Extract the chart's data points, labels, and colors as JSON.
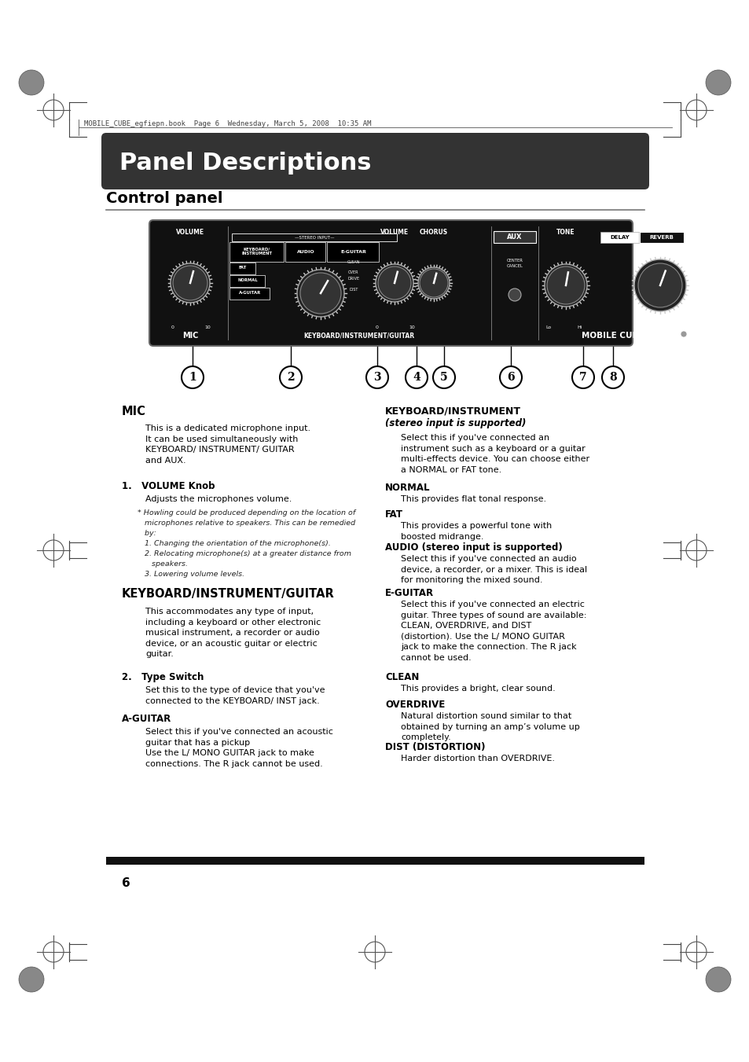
{
  "bg_color": "#ffffff",
  "page_title": "Panel Descriptions",
  "section_title": "Control panel",
  "header_text": "MOBILE_CUBE_egfiepn.book  Page 6  Wednesday, March 5, 2008  10:35 AM",
  "page_number": "6",
  "mic_heading": "MIC",
  "mic_body": "This is a dedicated microphone input.\nIt can be used simultaneously with\nKEYBOARD/ INSTRUMENT/ GUITAR\nand AUX.",
  "mic_sub1_heading": "1.   VOLUME Knob",
  "mic_sub1_body": "Adjusts the microphones volume.",
  "ki_heading": "KEYBOARD/INSTRUMENT/GUITAR",
  "ki_body": "This accommodates any type of input,\nincluding a keyboard or other electronic\nmusical instrument, a recorder or audio\ndevice, or an acoustic guitar or electric\nguitar.",
  "ki_sub1_heading": "2.   Type Switch",
  "ki_sub1_body": "Set this to the type of device that you've\nconnected to the KEYBOARD/ INST jack.",
  "a_guitar_heading": "A-GUITAR",
  "a_guitar_body": "Select this if you've connected an acoustic\nguitar that has a pickup\nUse the L/ MONO GUITAR jack to make\nconnections. The R jack cannot be used.",
  "ki_right_heading_1": "KEYBOARD/INSTRUMENT",
  "ki_right_heading_2": "(stereo input is supported)",
  "ki_right_body": "Select this if you've connected an\ninstrument such as a keyboard or a guitar\nmulti-effects device. You can choose either\na NORMAL or FAT tone.",
  "normal_heading": "NORMAL",
  "normal_body": "This provides flat tonal response.",
  "fat_heading": "FAT",
  "fat_body": "This provides a powerful tone with\nboosted midrange.",
  "audio_heading": "AUDIO (stereo input is supported)",
  "audio_body": "Select this if you've connected an audio\ndevice, a recorder, or a mixer. This is ideal\nfor monitoring the mixed sound.",
  "eguitar_heading": "E-GUITAR",
  "eguitar_body": "Select this if you've connected an electric\nguitar. Three types of sound are available:\nCLEAN, OVERDRIVE, and DIST\n(distortion). Use the L/ MONO GUITAR\njack to make the connection. The R jack\ncannot be used.",
  "clean_heading": "CLEAN",
  "clean_body": "This provides a bright, clear sound.",
  "overdrive_heading": "OVERDRIVE",
  "overdrive_body": "Natural distortion sound similar to that\nobtained by turning an amp’s volume up\ncompletely.",
  "dist_heading": "DIST (DISTORTION)",
  "dist_body": "Harder distortion than OVERDRIVE.",
  "title_bg": "#333333",
  "title_fg": "#ffffff",
  "note_lines": [
    "* Howling could be produced depending on the location of",
    "   microphones relative to speakers. This can be remedied",
    "   by:",
    "   1. Changing the orientation of the microphone(s).",
    "   2. Relocating microphone(s) at a greater distance from",
    "      speakers.",
    "   3. Lowering volume levels."
  ]
}
